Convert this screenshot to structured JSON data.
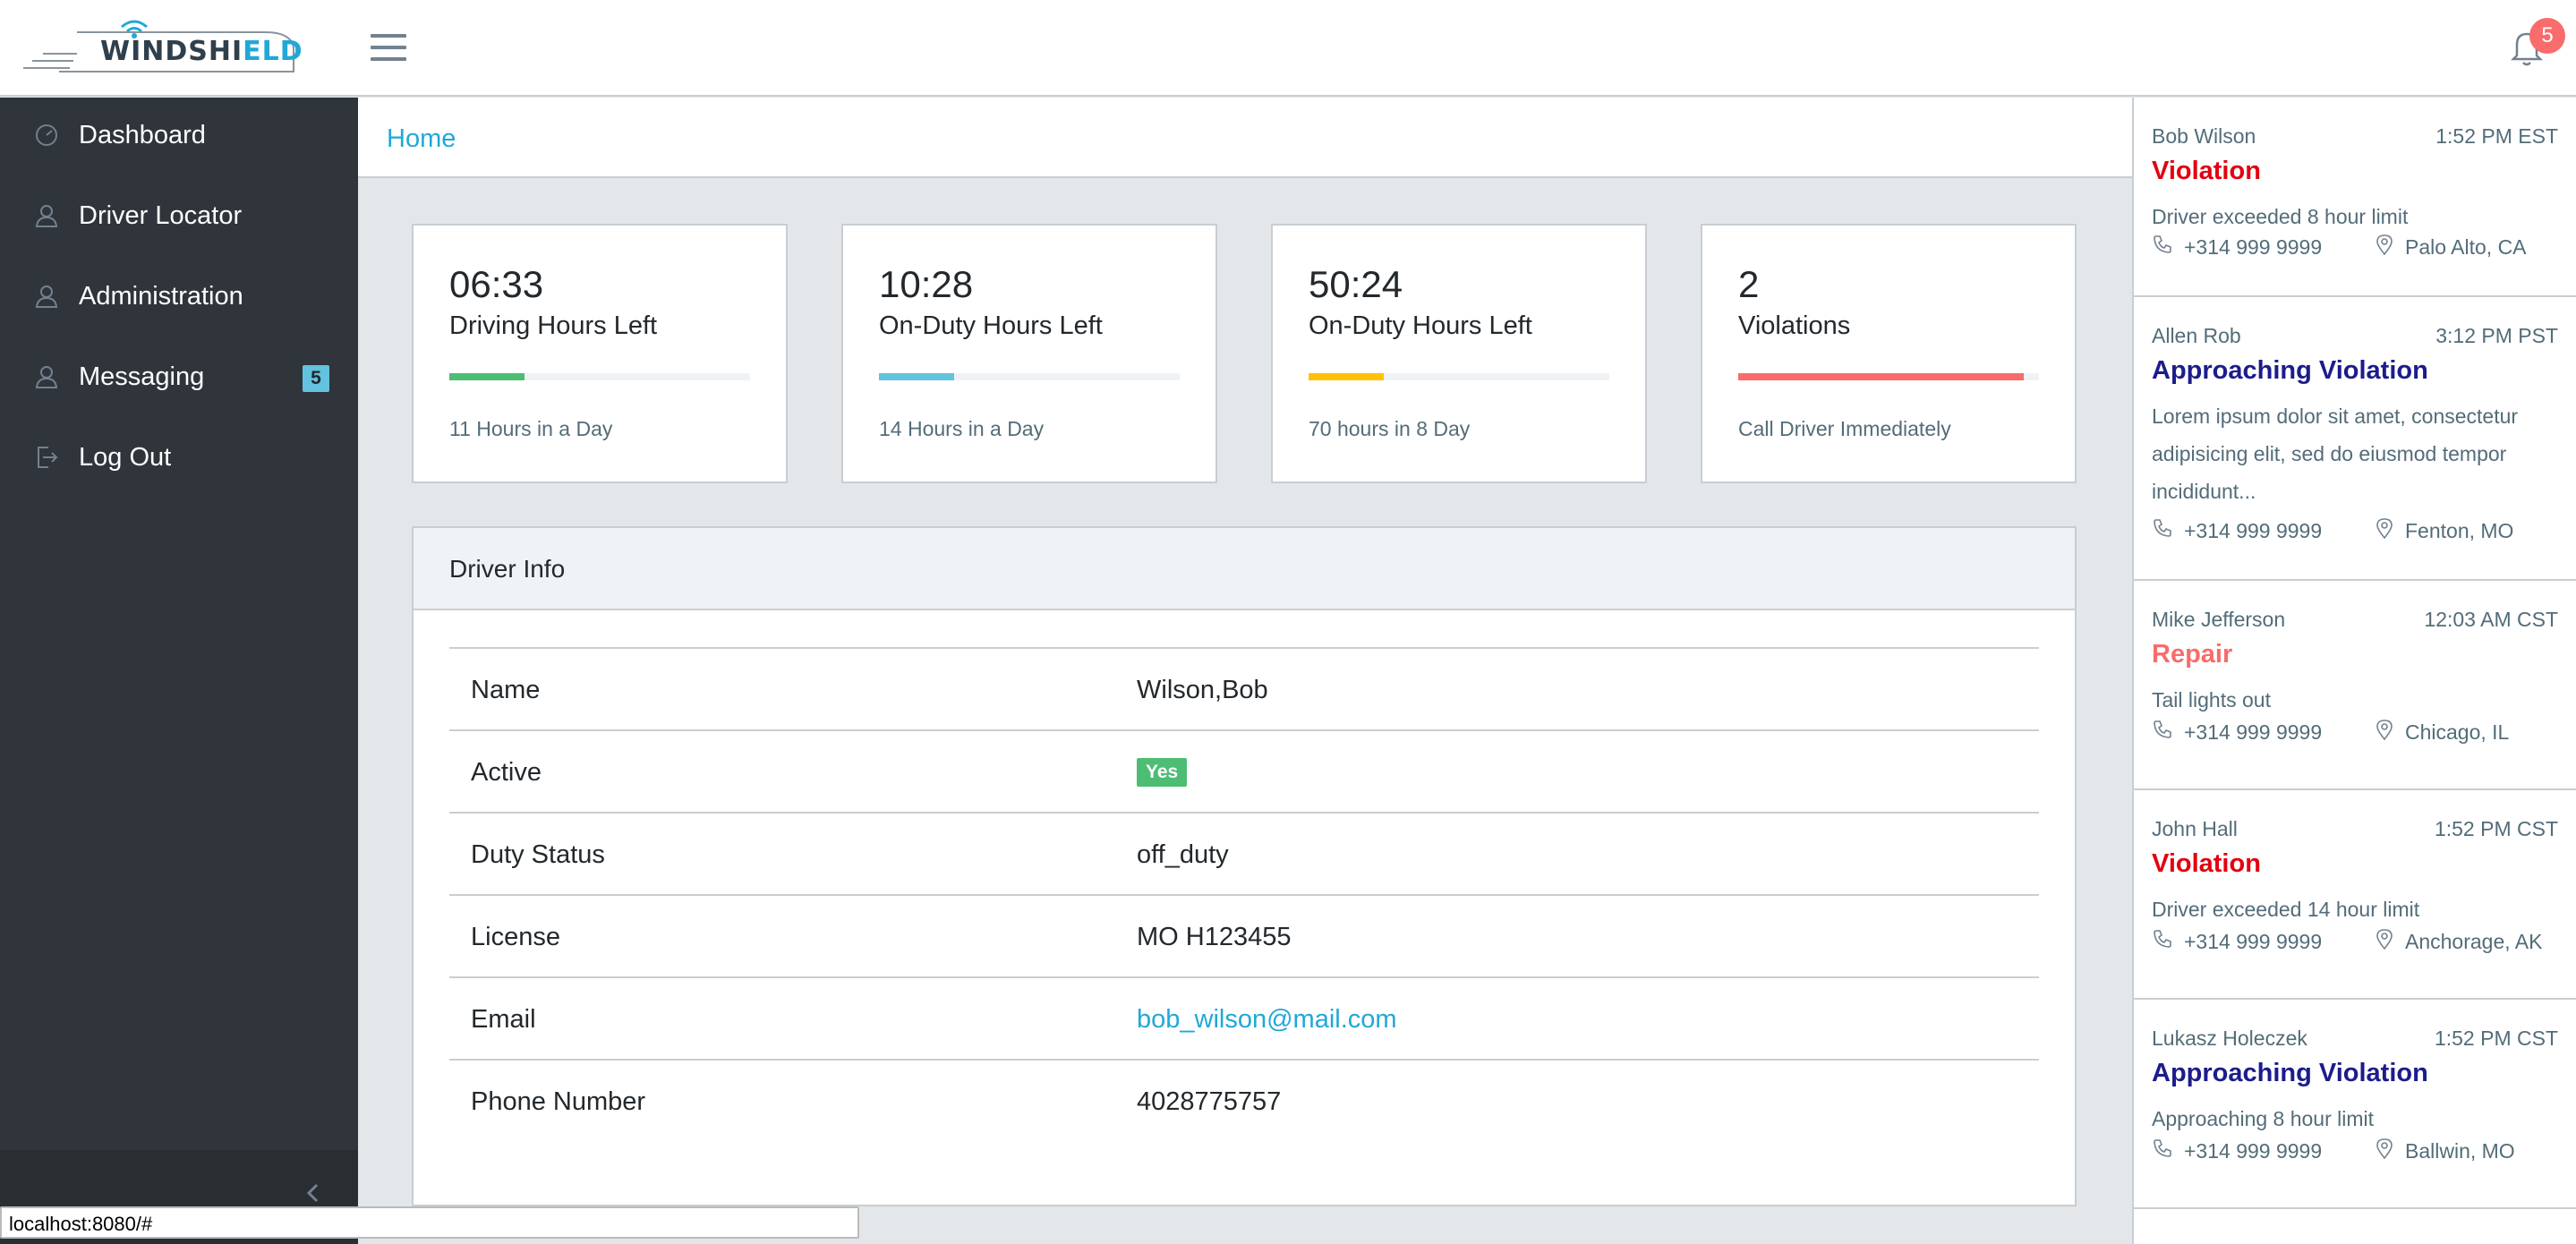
{
  "brand": {
    "logo_main": "WINDSHI",
    "logo_accent": "ELD"
  },
  "header": {
    "notification_count": "5"
  },
  "sidebar": {
    "items": [
      {
        "label": "Dashboard",
        "icon": "dashboard-gauge-icon"
      },
      {
        "label": "Driver Locator",
        "icon": "user-icon"
      },
      {
        "label": "Administration",
        "icon": "user-icon"
      },
      {
        "label": "Messaging",
        "icon": "user-icon",
        "badge": "5"
      },
      {
        "label": "Log Out",
        "icon": "logout-icon"
      }
    ]
  },
  "breadcrumb": {
    "home": "Home"
  },
  "stats": [
    {
      "value": "06:33",
      "title": "Driving Hours Left",
      "sub": "11 Hours in a Day",
      "progress": 0.25,
      "color": "#4dbd74"
    },
    {
      "value": "10:28",
      "title": "On-Duty Hours Left",
      "sub": "14 Hours in a Day",
      "progress": 0.25,
      "color": "#63c2de"
    },
    {
      "value": "50:24",
      "title": "On-Duty Hours Left",
      "sub": "70 hours in 8 Day",
      "progress": 0.25,
      "color": "#ffc107"
    },
    {
      "value": "2",
      "title": "Violations",
      "sub": "Call Driver Immediately",
      "progress": 0.95,
      "color": "#f86c6b"
    }
  ],
  "driver_info": {
    "heading": "Driver Info",
    "rows": [
      {
        "label": "Name",
        "value": "Wilson,Bob"
      },
      {
        "label": "Active",
        "value": "Yes"
      },
      {
        "label": "Duty Status",
        "value": "off_duty"
      },
      {
        "label": "License",
        "value": "MO H123455"
      },
      {
        "label": "Email",
        "value": "bob_wilson@mail.com"
      },
      {
        "label": "Phone Number",
        "value": "4028775757"
      }
    ]
  },
  "notifications": [
    {
      "name": "Bob Wilson",
      "time": "1:52 PM EST",
      "type": "Violation",
      "type_color": "#e3000f",
      "desc": "Driver exceeded 8 hour limit",
      "phone": "+314 999 9999",
      "location": "Palo Alto, CA"
    },
    {
      "name": "Allen Rob",
      "time": "3:12 PM PST",
      "type": "Approaching Violation",
      "type_color": "#1c1c8c",
      "desc": "Lorem ipsum dolor sit amet, consectetur adipisicing elit, sed do eiusmod tempor incididunt...",
      "phone": "+314 999 9999",
      "location": "Fenton, MO"
    },
    {
      "name": "Mike Jefferson",
      "time": "12:03 AM CST",
      "type": "Repair",
      "type_color": "#f86c6b",
      "desc": "Tail lights out",
      "phone": "+314 999 9999",
      "location": "Chicago, IL"
    },
    {
      "name": "John Hall",
      "time": "1:52 PM CST",
      "type": "Violation",
      "type_color": "#e3000f",
      "desc": "Driver exceeded 14 hour limit",
      "phone": "+314 999 9999",
      "location": "Anchorage, AK"
    },
    {
      "name": "Lukasz Holeczek",
      "time": "1:52 PM CST",
      "type": "Approaching Violation",
      "type_color": "#1c1c8c",
      "desc": "Approaching 8 hour limit",
      "phone": "+314 999 9999",
      "location": "Ballwin, MO"
    }
  ],
  "browser_status": {
    "url": "localhost:8080/#"
  }
}
